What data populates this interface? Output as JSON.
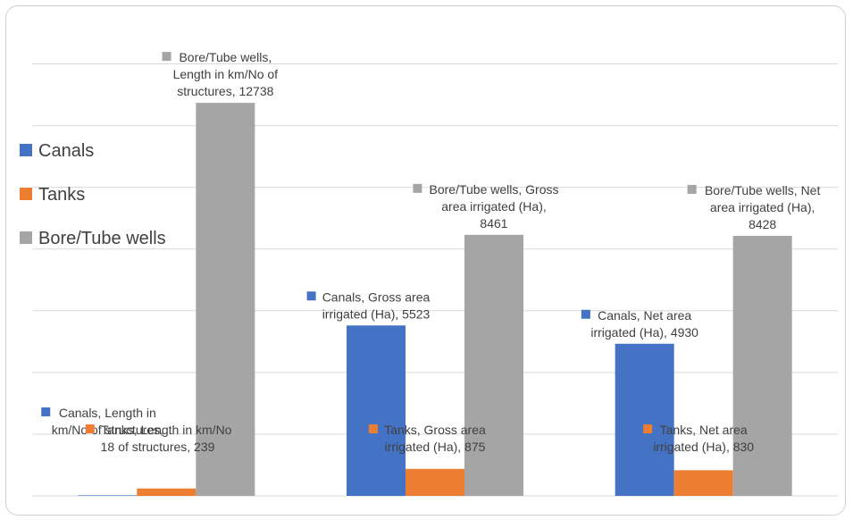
{
  "chart_data": {
    "type": "bar",
    "categories": [
      "Length in km/No of structures",
      "Gross area irrigated (Ha)",
      "Net area irrigated (Ha)"
    ],
    "series": [
      {
        "name": "Canals",
        "color": "#4472c4",
        "values": [
          18,
          5523,
          4930
        ]
      },
      {
        "name": "Tanks",
        "color": "#ed7d31",
        "values": [
          239,
          875,
          830
        ]
      },
      {
        "name": "Bore/Tube wells",
        "color": "#a5a5a5",
        "values": [
          12738,
          8461,
          8428
        ]
      }
    ],
    "data_labels": [
      [
        "Canals, Length in km/No of structures, 18",
        "Canals, Gross area irrigated (Ha), 5523",
        "Canals, Net area irrigated (Ha), 4930"
      ],
      [
        "Tanks, Length in km/No of structures, 239",
        "Tanks, Gross area irrigated (Ha), 875",
        "Tanks, Net area irrigated (Ha), 830"
      ],
      [
        "Bore/Tube wells, Length in km/No of structures, 12738",
        "Bore/Tube wells, Gross area irrigated (Ha), 8461",
        "Bore/Tube wells, Net area irrigated (Ha), 8428"
      ]
    ],
    "ylim": [
      0,
      15000
    ],
    "grid": true,
    "legend_position": "left",
    "title": "",
    "xlabel": "",
    "ylabel": ""
  }
}
